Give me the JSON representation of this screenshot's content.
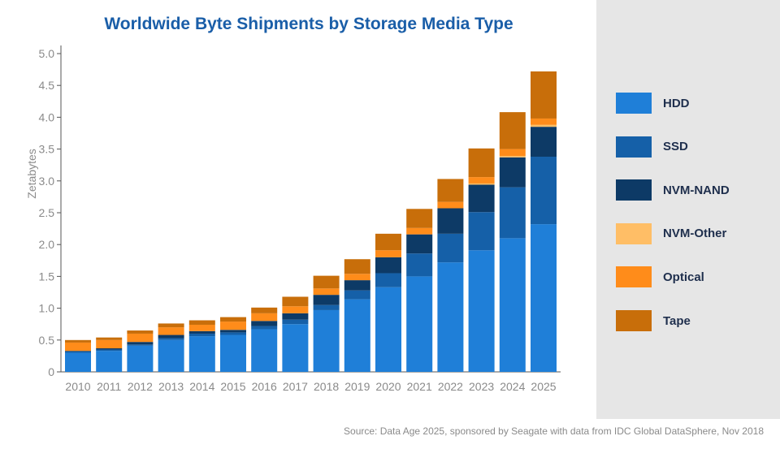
{
  "chart_data": {
    "type": "bar",
    "stacked": true,
    "title": "Worldwide Byte Shipments by Storage Media Type",
    "xlabel": "",
    "ylabel": "Zetabytes",
    "ylim": [
      0,
      5.0
    ],
    "yticks": [
      "0",
      "0.5",
      "1.0",
      "1.5",
      "2.0",
      "2.5",
      "3.0",
      "3.5",
      "4.0",
      "4.5",
      "5.0"
    ],
    "grid": false,
    "legend_position": "right",
    "categories": [
      "2010",
      "2011",
      "2012",
      "2013",
      "2014",
      "2015",
      "2016",
      "2017",
      "2018",
      "2019",
      "2020",
      "2021",
      "2022",
      "2023",
      "2024",
      "2025"
    ],
    "series": [
      {
        "name": "HDD",
        "color": "#1f7fd8",
        "values": [
          0.3,
          0.33,
          0.41,
          0.5,
          0.56,
          0.58,
          0.67,
          0.75,
          0.97,
          1.14,
          1.33,
          1.5,
          1.72,
          1.91,
          2.1,
          2.32
        ]
      },
      {
        "name": "SSD",
        "color": "#1560a8",
        "values": [
          0.02,
          0.02,
          0.02,
          0.03,
          0.04,
          0.04,
          0.05,
          0.07,
          0.08,
          0.14,
          0.22,
          0.36,
          0.45,
          0.6,
          0.8,
          1.06
        ]
      },
      {
        "name": "NVM-NAND",
        "color": "#0d3a66",
        "values": [
          0.01,
          0.02,
          0.04,
          0.05,
          0.04,
          0.04,
          0.08,
          0.1,
          0.16,
          0.16,
          0.25,
          0.3,
          0.4,
          0.43,
          0.47,
          0.47
        ]
      },
      {
        "name": "NVM-Other",
        "color": "#ffbe66",
        "values": [
          0.0,
          0.0,
          0.0,
          0.0,
          0.0,
          0.0,
          0.0,
          0.0,
          0.0,
          0.0,
          0.0,
          0.0,
          0.0,
          0.02,
          0.02,
          0.03
        ]
      },
      {
        "name": "Optical",
        "color": "#ff8c1a",
        "values": [
          0.13,
          0.13,
          0.13,
          0.12,
          0.1,
          0.13,
          0.12,
          0.11,
          0.1,
          0.1,
          0.11,
          0.1,
          0.1,
          0.1,
          0.11,
          0.1
        ]
      },
      {
        "name": "Tape",
        "color": "#c86e0a",
        "values": [
          0.04,
          0.04,
          0.05,
          0.06,
          0.07,
          0.07,
          0.09,
          0.15,
          0.2,
          0.23,
          0.26,
          0.3,
          0.36,
          0.45,
          0.58,
          0.74
        ]
      }
    ]
  },
  "source": "Source: Data Age 2025, sponsored by Seagate with data from IDC Global DataSphere, Nov 2018"
}
